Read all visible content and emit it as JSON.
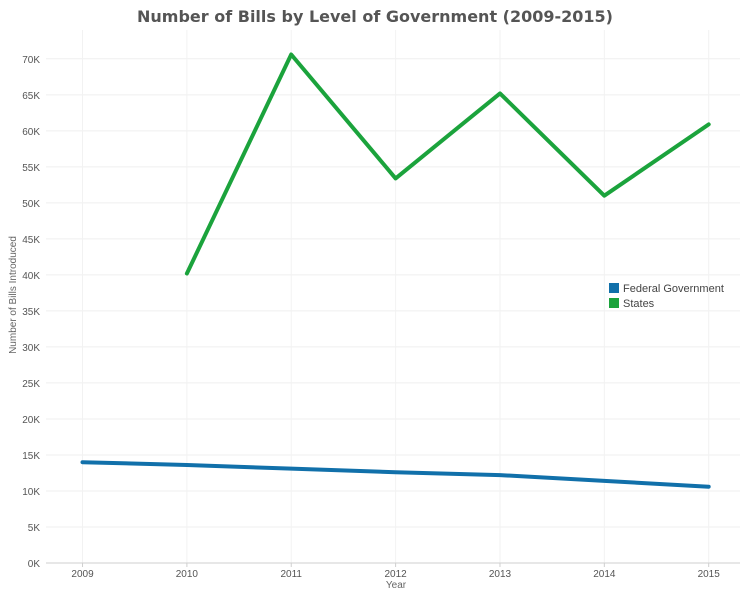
{
  "chart_data": {
    "type": "line",
    "title": "Number of Bills by Level of Government (2009-2015)",
    "xlabel": "Year",
    "ylabel": "Number of Bills Introduced",
    "x": [
      2009,
      2010,
      2011,
      2012,
      2013,
      2014,
      2015
    ],
    "x_tick_labels": [
      "2009",
      "2010",
      "2011",
      "2012",
      "2013",
      "2014",
      "2015"
    ],
    "y_tick_values": [
      0,
      5000,
      10000,
      15000,
      20000,
      25000,
      30000,
      35000,
      40000,
      45000,
      50000,
      55000,
      60000,
      65000,
      70000
    ],
    "y_tick_labels": [
      "0K",
      "5K",
      "10K",
      "15K",
      "20K",
      "25K",
      "30K",
      "35K",
      "40K",
      "45K",
      "50K",
      "55K",
      "60K",
      "65K",
      "70K"
    ],
    "ylim": [
      0,
      74000
    ],
    "xlim": [
      2008.65,
      2015.3
    ],
    "grid": true,
    "legend_position": "right",
    "series": [
      {
        "name": "Federal Government",
        "color": "#1170AA",
        "values": [
          14000,
          13600,
          13100,
          12600,
          12200,
          11400,
          10600
        ]
      },
      {
        "name": "States",
        "color": "#1BA33C",
        "values": [
          null,
          40200,
          70600,
          53400,
          65200,
          51000,
          60900
        ]
      }
    ]
  }
}
